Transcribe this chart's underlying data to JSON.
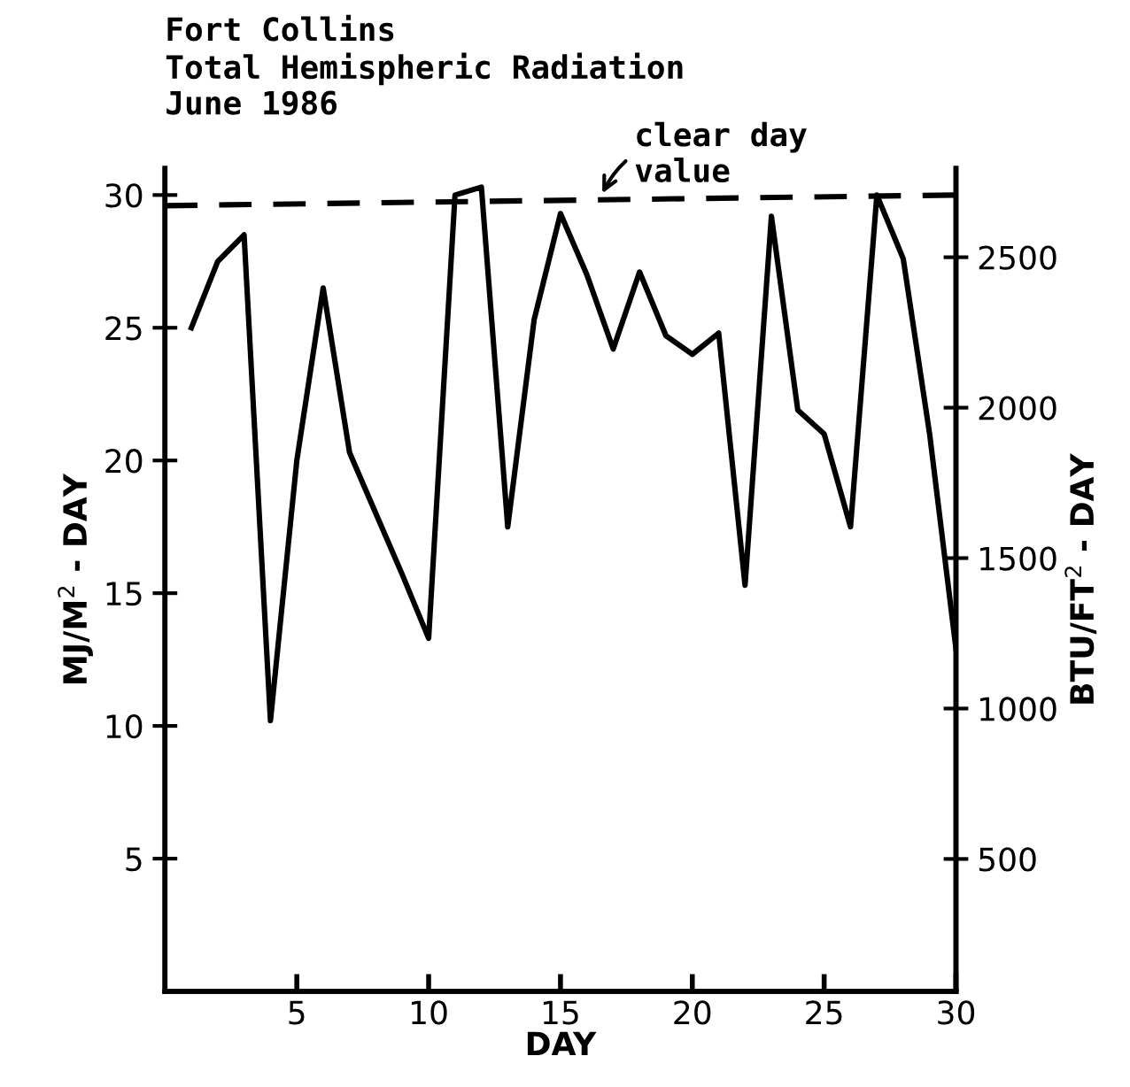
{
  "chart_data": {
    "type": "line",
    "title": "Fort Collins\nTotal Hemispheric Radiation\nJune 1986",
    "xlabel": "DAY",
    "ylabel": "MJ/M$^{2}$ - DAY",
    "y2label": "BTU/FT$^{2}$ - DAY",
    "x": [
      1,
      2,
      3,
      4,
      5,
      6,
      7,
      8,
      9,
      10,
      11,
      12,
      13,
      14,
      15,
      16,
      17,
      18,
      19,
      20,
      21,
      22,
      23,
      24,
      25,
      26,
      27,
      28,
      29,
      30
    ],
    "series": [
      {
        "color": "#000000",
        "values": [
          25,
          27.5,
          28.5,
          10.2,
          20,
          26.5,
          20.3,
          18,
          15.7,
          13.3,
          30,
          30.3,
          17.5,
          25.3,
          29.3,
          27,
          24.2,
          27.1,
          24.7,
          24,
          24.8,
          15.3,
          29.2,
          21.9,
          21,
          17.5,
          30,
          27.6,
          21,
          12.9
        ]
      },
      {
        "type": "line",
        "color": "#000000",
        "line_style": "dashed",
        "x": [
          0,
          30
        ],
        "values": [
          29.6,
          30.0
        ]
      }
    ],
    "annotations": [
      {
        "text": "clear day\nvalue",
        "x": 16.5,
        "y": 29.9
      }
    ],
    "xlim": [
      0,
      30
    ],
    "xticks": [
      5,
      10,
      15,
      20,
      25,
      30
    ],
    "ylim": [
      0,
      31
    ],
    "yticks": [
      5,
      10,
      15,
      20,
      25,
      30
    ],
    "y2lim": [
      60,
      2795
    ],
    "y2ticks": [
      500,
      1000,
      1500,
      2000,
      2500
    ],
    "grid": false,
    "legend": false,
    "marker": "none",
    "line_style": "solid"
  }
}
